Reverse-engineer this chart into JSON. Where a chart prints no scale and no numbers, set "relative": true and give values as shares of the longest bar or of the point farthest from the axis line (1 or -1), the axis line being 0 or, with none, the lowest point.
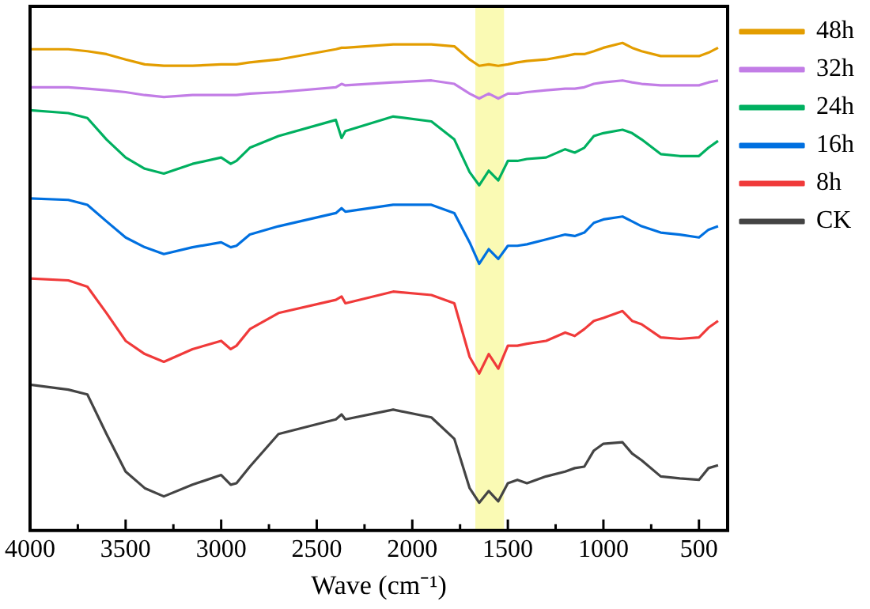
{
  "chart_data": {
    "type": "line",
    "relative": true,
    "xlabel": "Wave (cm⁻¹)",
    "x": [
      4000,
      3800,
      3700,
      3600,
      3500,
      3400,
      3300,
      3150,
      3000,
      2950,
      2920,
      2850,
      2700,
      2400,
      2370,
      2350,
      2100,
      1900,
      1780,
      1700,
      1650,
      1600,
      1550,
      1500,
      1450,
      1400,
      1300,
      1200,
      1150,
      1100,
      1050,
      1000,
      900,
      850,
      800,
      700,
      600,
      500,
      450,
      400
    ],
    "xlim": [
      4000,
      350
    ],
    "xticks": [
      4000,
      {
        "value": 3750,
        "label": null
      },
      3500,
      {
        "value": 3250,
        "label": null
      },
      3000,
      {
        "value": 2750,
        "label": null
      },
      2500,
      {
        "value": 2250,
        "label": null
      },
      2000,
      {
        "value": 1750,
        "label": null
      },
      1500,
      {
        "value": 1250,
        "label": null
      },
      1000,
      {
        "value": 750,
        "label": null
      },
      500
    ],
    "legend": "top right",
    "marker": "none",
    "grid": false,
    "bands": [
      {
        "axis": "x",
        "from": 1670,
        "to": 1520,
        "color": "#fafab4"
      }
    ],
    "series": [
      {
        "name": "48h",
        "color": "#e39d00",
        "values": [
          0.987,
          0.987,
          0.983,
          0.977,
          0.966,
          0.956,
          0.953,
          0.953,
          0.956,
          0.956,
          0.956,
          0.96,
          0.966,
          0.987,
          0.99,
          0.99,
          0.997,
          0.997,
          0.993,
          0.966,
          0.953,
          0.956,
          0.953,
          0.956,
          0.96,
          0.963,
          0.966,
          0.973,
          0.977,
          0.977,
          0.983,
          0.99,
          1,
          0.99,
          0.983,
          0.973,
          0.973,
          0.973,
          0.98,
          0.99
        ]
      },
      {
        "name": "32h",
        "color": "#c27de6",
        "values": [
          0.909,
          0.909,
          0.906,
          0.903,
          0.899,
          0.893,
          0.889,
          0.893,
          0.893,
          0.893,
          0.893,
          0.896,
          0.899,
          0.909,
          0.916,
          0.913,
          0.919,
          0.923,
          0.916,
          0.896,
          0.886,
          0.896,
          0.886,
          0.896,
          0.896,
          0.899,
          0.903,
          0.906,
          0.906,
          0.909,
          0.916,
          0.919,
          0.923,
          0.919,
          0.916,
          0.913,
          0.913,
          0.913,
          0.919,
          0.923
        ]
      },
      {
        "name": "24h",
        "color": "#00b060",
        "values": [
          0.862,
          0.856,
          0.846,
          0.802,
          0.765,
          0.742,
          0.732,
          0.752,
          0.765,
          0.752,
          0.758,
          0.785,
          0.809,
          0.842,
          0.805,
          0.819,
          0.849,
          0.839,
          0.802,
          0.735,
          0.708,
          0.738,
          0.718,
          0.758,
          0.758,
          0.762,
          0.765,
          0.782,
          0.775,
          0.785,
          0.809,
          0.815,
          0.822,
          0.815,
          0.802,
          0.772,
          0.768,
          0.768,
          0.785,
          0.799
        ]
      },
      {
        "name": "16h",
        "color": "#0070e0",
        "values": [
          0.681,
          0.678,
          0.668,
          0.634,
          0.601,
          0.581,
          0.567,
          0.581,
          0.591,
          0.581,
          0.584,
          0.607,
          0.624,
          0.651,
          0.661,
          0.654,
          0.668,
          0.668,
          0.651,
          0.591,
          0.547,
          0.577,
          0.557,
          0.584,
          0.584,
          0.587,
          0.597,
          0.607,
          0.604,
          0.611,
          0.631,
          0.638,
          0.644,
          0.634,
          0.624,
          0.611,
          0.607,
          0.601,
          0.617,
          0.624
        ]
      },
      {
        "name": "8h",
        "color": "#f03a3a",
        "values": [
          0.517,
          0.513,
          0.5,
          0.446,
          0.389,
          0.362,
          0.346,
          0.372,
          0.389,
          0.372,
          0.379,
          0.413,
          0.446,
          0.473,
          0.48,
          0.466,
          0.49,
          0.483,
          0.466,
          0.356,
          0.322,
          0.362,
          0.332,
          0.379,
          0.379,
          0.383,
          0.389,
          0.406,
          0.399,
          0.413,
          0.43,
          0.436,
          0.45,
          0.43,
          0.423,
          0.396,
          0.393,
          0.396,
          0.416,
          0.43
        ]
      },
      {
        "name": "CK",
        "color": "#444444",
        "values": [
          0.299,
          0.289,
          0.279,
          0.198,
          0.121,
          0.087,
          0.07,
          0.094,
          0.114,
          0.094,
          0.097,
          0.131,
          0.198,
          0.228,
          0.238,
          0.228,
          0.248,
          0.232,
          0.188,
          0.087,
          0.057,
          0.081,
          0.06,
          0.097,
          0.104,
          0.097,
          0.111,
          0.121,
          0.128,
          0.131,
          0.164,
          0.178,
          0.181,
          0.158,
          0.144,
          0.111,
          0.107,
          0.104,
          0.128,
          0.134
        ]
      }
    ]
  }
}
